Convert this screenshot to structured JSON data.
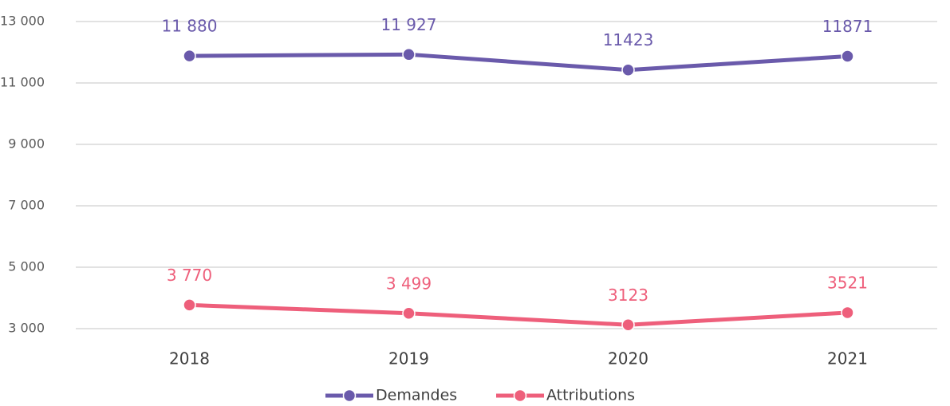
{
  "chart_data": {
    "type": "line",
    "categories": [
      "2018",
      "2019",
      "2020",
      "2021"
    ],
    "series": [
      {
        "name": "Demandes",
        "color": "#6a5aab",
        "values": [
          11880,
          11927,
          11423,
          11871
        ],
        "value_labels": [
          "11 880",
          "11 927",
          "11423",
          "11871"
        ]
      },
      {
        "name": "Attributions",
        "color": "#ee5f7b",
        "values": [
          3770,
          3499,
          3123,
          3521
        ],
        "value_labels": [
          "3 770",
          "3 499",
          "3123",
          "3521"
        ]
      }
    ],
    "ylim": [
      3000,
      13000
    ],
    "yticks": [
      {
        "value": 3000,
        "label": "3 000"
      },
      {
        "value": 5000,
        "label": "5 000"
      },
      {
        "value": 7000,
        "label": "7 000"
      },
      {
        "value": 9000,
        "label": "9 000"
      },
      {
        "value": 11000,
        "label": "11 000"
      },
      {
        "value": 13000,
        "label": "13 000"
      }
    ],
    "grid": true,
    "legend": "bottom"
  }
}
